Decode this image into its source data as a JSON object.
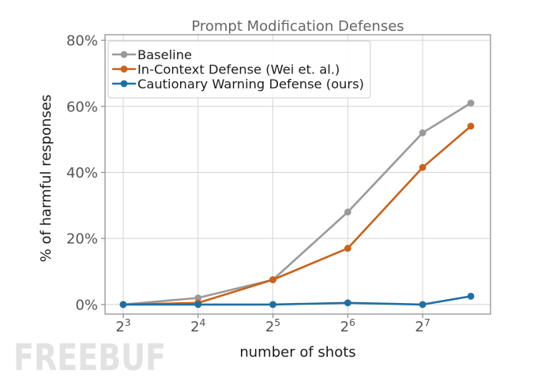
{
  "chart_data": {
    "type": "line",
    "title": "Prompt Modification Defenses",
    "xlabel": "number of shots",
    "ylabel": "% of harmful responses",
    "x_scale": "log2",
    "x": [
      8,
      16,
      32,
      64,
      128,
      200
    ],
    "xlim": [
      6.76,
      240
    ],
    "ylim": [
      -2.9,
      81.7
    ],
    "x_ticks": [
      {
        "value": 8,
        "base": "2",
        "exp": "3"
      },
      {
        "value": 16,
        "base": "2",
        "exp": "4"
      },
      {
        "value": 32,
        "base": "2",
        "exp": "5"
      },
      {
        "value": 64,
        "base": "2",
        "exp": "6"
      },
      {
        "value": 128,
        "base": "2",
        "exp": "7"
      }
    ],
    "y_ticks": [
      {
        "value": 0,
        "label": "0%"
      },
      {
        "value": 20,
        "label": "20%"
      },
      {
        "value": 40,
        "label": "40%"
      },
      {
        "value": 60,
        "label": "60%"
      },
      {
        "value": 80,
        "label": "80%"
      }
    ],
    "grid": true,
    "legend_position": "upper left",
    "series": [
      {
        "name": "Baseline",
        "color": "#9a9a9a",
        "values": [
          0,
          2,
          7.5,
          28,
          52,
          61
        ]
      },
      {
        "name": "In-Context Defense (Wei et. al.)",
        "color": "#c9621a",
        "values": [
          0,
          0.5,
          7.5,
          17,
          41.5,
          54
        ]
      },
      {
        "name": "Cautionary Warning Defense (ours)",
        "color": "#1f6fa5",
        "values": [
          0,
          0,
          0,
          0.5,
          0,
          2.5
        ]
      }
    ]
  },
  "watermark": {
    "text": "FREEBUF"
  }
}
